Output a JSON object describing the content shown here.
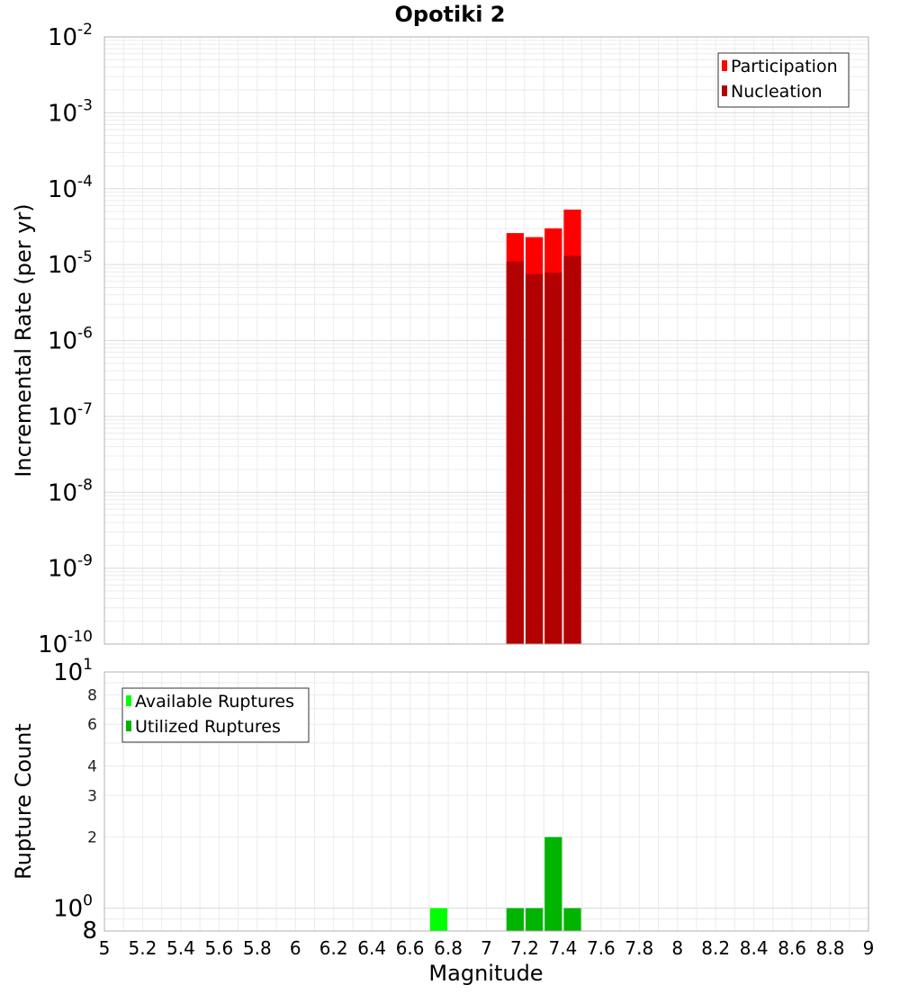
{
  "chart_data": {
    "title": "Opotiki 2",
    "xlabel": "Magnitude",
    "xlim": [
      5,
      9
    ],
    "x_ticks": [
      "5",
      "5.2",
      "5.4",
      "5.6",
      "5.8",
      "6",
      "6.2",
      "6.4",
      "6.6",
      "6.8",
      "7",
      "7.2",
      "7.4",
      "7.6",
      "7.8",
      "8",
      "8.2",
      "8.4",
      "8.6",
      "8.8",
      "9"
    ],
    "bin_width": 0.1,
    "grid": true,
    "panels": [
      {
        "type": "bar",
        "scale": "log",
        "ylabel": "Incremental Rate (per yr)",
        "ylim": [
          1e-10,
          0.01
        ],
        "y_ticks": [
          {
            "base": "10",
            "exp": "-2"
          },
          {
            "base": "10",
            "exp": "-3"
          },
          {
            "base": "10",
            "exp": "-4"
          },
          {
            "base": "10",
            "exp": "-5"
          },
          {
            "base": "10",
            "exp": "-6"
          },
          {
            "base": "10",
            "exp": "-7"
          },
          {
            "base": "10",
            "exp": "-8"
          },
          {
            "base": "10",
            "exp": "-9"
          },
          {
            "base": "10",
            "exp": "-10"
          }
        ],
        "legend_position": "top-right",
        "series": [
          {
            "name": "Participation",
            "color": "#ff0000",
            "x": [
              7.15,
              7.25,
              7.35,
              7.45
            ],
            "values": [
              2.6e-05,
              2.3e-05,
              3e-05,
              5.3e-05
            ]
          },
          {
            "name": "Nucleation",
            "color": "#b30000",
            "x": [
              7.15,
              7.25,
              7.35,
              7.45
            ],
            "values": [
              1.1e-05,
              7.5e-06,
              7.8e-06,
              1.3e-05
            ]
          }
        ]
      },
      {
        "type": "bar",
        "scale": "log",
        "ylabel": "Rupture Count",
        "ylim": [
          0.8,
          10
        ],
        "y_ticks": [
          {
            "value": 10,
            "base": "10",
            "exp": "1"
          },
          {
            "value": 1,
            "base": "10",
            "exp": "0"
          }
        ],
        "y_minor_ticks": [
          {
            "value": 8,
            "label": "8"
          },
          {
            "value": 6,
            "label": "6"
          },
          {
            "value": 4,
            "label": "4"
          },
          {
            "value": 3,
            "label": "3"
          },
          {
            "value": 2,
            "label": "2"
          }
        ],
        "y_bottom_label": "8",
        "legend_position": "top-left",
        "series": [
          {
            "name": "Available Ruptures",
            "color": "#00ff00",
            "x": [
              6.75
            ],
            "values": [
              1
            ]
          },
          {
            "name": "Utilized Ruptures",
            "color": "#00b400",
            "x": [
              7.15,
              7.25,
              7.35,
              7.45
            ],
            "values": [
              1,
              1,
              2,
              1
            ]
          }
        ]
      }
    ]
  }
}
